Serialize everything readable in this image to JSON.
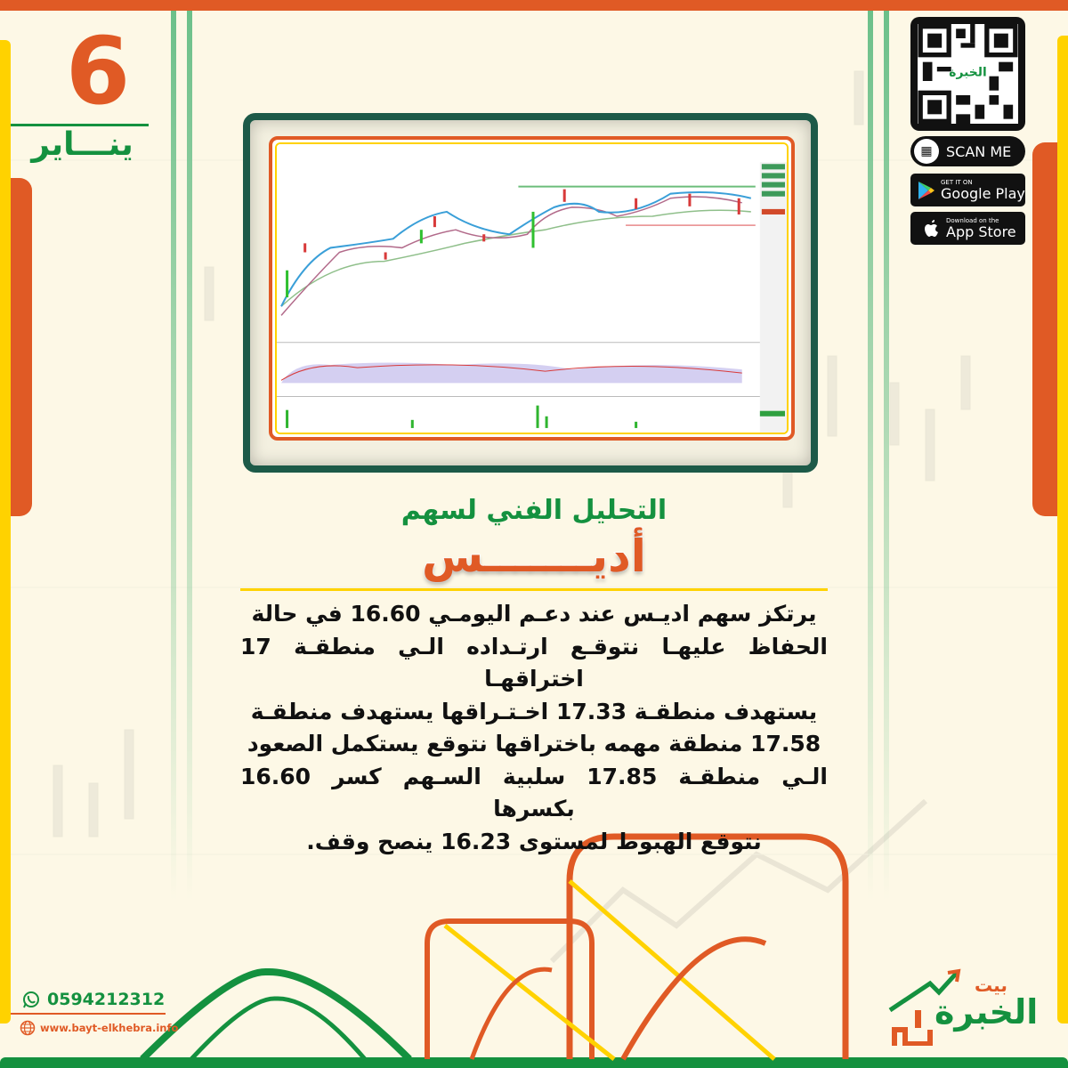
{
  "date": {
    "day": "6",
    "month": "ينـــاير"
  },
  "title": {
    "line1": "التحليل الفني لسهم",
    "stock": "أديـــــــس"
  },
  "analysis": [
    "يرتكز سهم اديـس عند دعـم اليومـي 16.60 في حالة",
    "الحفاظ عليهـا نتوقـع ارتـداده الـي منطقـة 17 اختراقهـا",
    "يستهدف منطقـة 17.33 اخـتـراقها يستهدف منطقـة",
    "17.58 منطقة مهمه باختراقها نتوقع يستكمل الصعود",
    "الـي منطقـة 17.85 سلبية السـهم كسر 16.60 بكسرها",
    "نتوقع الهبوط لمستوى 16.23 ينصح وقف."
  ],
  "qr": {
    "scan_label": "SCAN ME"
  },
  "stores": {
    "google_small": "GET IT ON",
    "google_big": "Google Play",
    "apple_small": "Download on the",
    "apple_big": "App Store"
  },
  "contact": {
    "phone": "0594212312",
    "website": "www.bayt-elkhebra.info"
  },
  "logo": {
    "line1": "بيت",
    "line2": "الخبرة"
  },
  "colors": {
    "orange": "#e05a25",
    "green": "#14913f",
    "yellow": "#ffd200",
    "frame": "#1d5a48"
  }
}
